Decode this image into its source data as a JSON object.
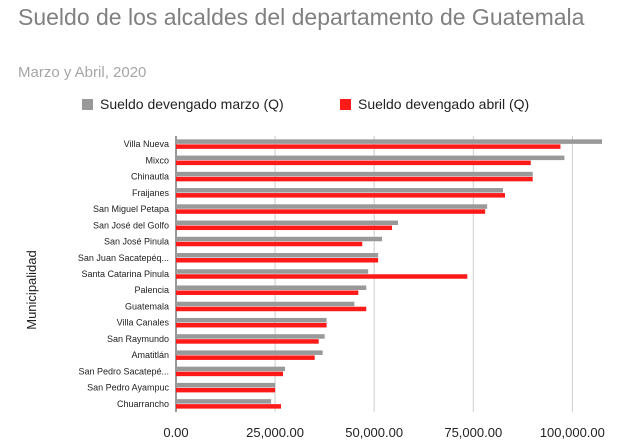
{
  "chart_data": {
    "type": "bar",
    "orientation": "horizontal",
    "title": "Sueldo de los alcaldes del departamento de Guatemala",
    "subtitle": "Marzo y Abril, 2020",
    "ylabel": "Municipalidad",
    "xlabel": "",
    "xlim": [
      0,
      110000
    ],
    "x_ticks": [
      0,
      25000,
      50000,
      75000,
      100000
    ],
    "x_tick_labels": [
      "0.00",
      "25,000.00",
      "50,000.00",
      "75,000.00",
      "100,000.00"
    ],
    "grid": "vertical",
    "legend_position": "top",
    "categories": [
      "Villa Nueva",
      "Mixco",
      "Chinautla",
      "Fraijanes",
      "San Miguel Petapa",
      "San José del Golfo",
      "San José Pinula",
      "San Juan Sacatepéq...",
      "Santa Catarina Pinula",
      "Palencia",
      "Guatemala",
      "Villa Canales",
      "San Raymundo",
      "Amatitlán",
      "San Pedro Sacatepé...",
      "San Pedro Ayampuc",
      "Chuarrancho"
    ],
    "series": [
      {
        "name": "Sueldo devengado marzo (Q)",
        "color": "#999999",
        "values": [
          107500,
          98000,
          90000,
          82500,
          78500,
          56000,
          52000,
          51000,
          48500,
          48000,
          45000,
          38000,
          37500,
          37000,
          27500,
          25000,
          24000
        ]
      },
      {
        "name": "Sueldo devengado abril (Q)",
        "color": "#ff1a1a",
        "values": [
          97000,
          89500,
          90000,
          83000,
          78000,
          54500,
          47000,
          51000,
          73500,
          46000,
          48000,
          38000,
          36000,
          35000,
          27000,
          25000,
          26500
        ]
      }
    ]
  }
}
